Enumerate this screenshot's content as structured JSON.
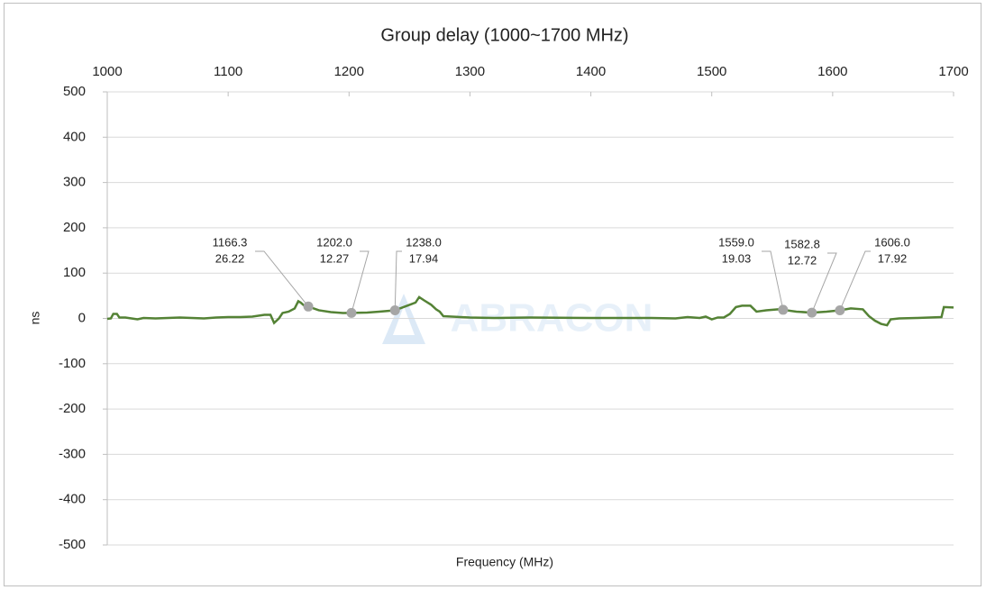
{
  "chart_data": {
    "type": "line",
    "title": "Group delay (1000~1700 MHz)",
    "x_label": "Frequency (MHz)",
    "y_label": "ns",
    "watermark": "ABRACON",
    "xlim": [
      1000,
      1700
    ],
    "xticks": [
      1000,
      1100,
      1200,
      1300,
      1400,
      1500,
      1600,
      1700
    ],
    "ylim": [
      -500,
      500
    ],
    "yticks": [
      -500,
      -400,
      -300,
      -200,
      -100,
      0,
      100,
      200,
      300,
      400,
      500
    ],
    "grid": true,
    "series": [
      {
        "name": "Group delay",
        "color": "#548235",
        "x": [
          1000,
          1003,
          1005,
          1008,
          1010,
          1015,
          1020,
          1025,
          1030,
          1040,
          1050,
          1060,
          1070,
          1080,
          1090,
          1100,
          1110,
          1120,
          1130,
          1135,
          1138,
          1142,
          1145,
          1150,
          1155,
          1158,
          1160,
          1163,
          1166.3,
          1175,
          1185,
          1195,
          1202,
          1215,
          1225,
          1238,
          1245,
          1250,
          1255,
          1258,
          1262,
          1268,
          1272,
          1275,
          1278,
          1285,
          1300,
          1320,
          1350,
          1400,
          1450,
          1470,
          1480,
          1490,
          1495,
          1500,
          1505,
          1510,
          1515,
          1520,
          1525,
          1532,
          1537,
          1545,
          1555,
          1559,
          1570,
          1582.8,
          1595,
          1606,
          1615,
          1625,
          1630,
          1635,
          1640,
          1645,
          1648,
          1655,
          1670,
          1680,
          1690,
          1692,
          1700
        ],
        "values": [
          -1,
          0,
          10,
          10,
          2,
          2,
          0,
          -2,
          1,
          0,
          1,
          2,
          1,
          0,
          2,
          3,
          3,
          4,
          8,
          8,
          -10,
          0,
          12,
          15,
          22,
          38,
          35,
          28,
          26.22,
          18,
          14,
          12,
          12.27,
          13,
          15,
          17.94,
          25,
          30,
          35,
          47,
          40,
          30,
          20,
          15,
          5,
          4,
          2,
          1,
          2,
          1,
          1,
          0,
          3,
          1,
          4,
          -2,
          2,
          2,
          10,
          25,
          28,
          28,
          15,
          18,
          20,
          19.03,
          15,
          12.72,
          15,
          17.92,
          22,
          20,
          5,
          -5,
          -12,
          -15,
          -2,
          0,
          1,
          2,
          3,
          25,
          24
        ]
      }
    ],
    "markers": {
      "color": "#a6a6a6",
      "x": [
        1166.3,
        1202.0,
        1238.0,
        1559.0,
        1582.8,
        1606.0
      ],
      "x_labels": [
        "1166.3",
        "1202.0",
        "1238.0",
        "1559.0",
        "1582.8",
        "1606.0"
      ],
      "values": [
        26.22,
        12.27,
        17.94,
        19.03,
        12.72,
        17.92
      ]
    }
  }
}
